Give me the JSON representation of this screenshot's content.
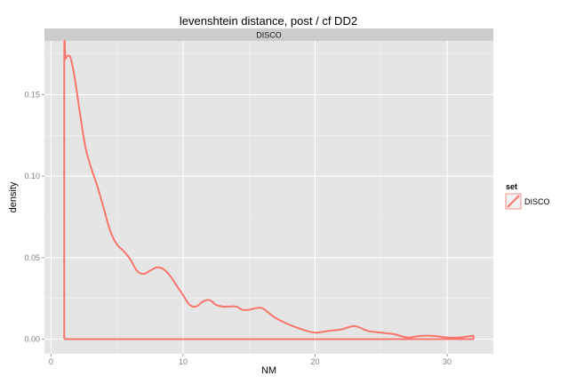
{
  "chart_data": {
    "type": "line",
    "title": "levenshtein distance, post / cf DD2",
    "facet_label": "DISCO",
    "xlabel": "NM",
    "ylabel": "density",
    "xlim": [
      -0.5,
      33.5
    ],
    "ylim": [
      -0.009,
      0.183
    ],
    "x_ticks": [
      0,
      10,
      20,
      30
    ],
    "x_tick_labels": [
      "0",
      "10",
      "20",
      "30"
    ],
    "y_ticks": [
      0.0,
      0.05,
      0.1,
      0.15
    ],
    "y_tick_labels": [
      "0.00",
      "0.05",
      "0.10",
      "0.15"
    ],
    "grid": true,
    "legend": {
      "title": "set",
      "position": "right",
      "entries": [
        "DISCO"
      ]
    },
    "series": [
      {
        "name": "DISCO",
        "color": "#f8766d",
        "x": [
          1,
          1,
          1.1,
          1.3,
          1.5,
          1.8,
          2.2,
          2.6,
          3,
          3.5,
          4,
          4.5,
          5,
          5.5,
          6,
          6.5,
          7,
          7.5,
          8,
          8.5,
          9,
          9.5,
          10,
          10.5,
          11,
          11.5,
          12,
          12.5,
          13,
          13.5,
          14,
          14.5,
          15,
          15.5,
          16,
          16.5,
          17,
          18,
          19,
          20,
          21,
          22,
          23,
          24,
          25,
          26,
          27,
          28,
          29,
          30,
          31,
          32,
          32,
          1
        ],
        "y": [
          0,
          0.17,
          0.172,
          0.174,
          0.172,
          0.16,
          0.138,
          0.118,
          0.106,
          0.094,
          0.08,
          0.066,
          0.058,
          0.054,
          0.049,
          0.042,
          0.04,
          0.042,
          0.044,
          0.043,
          0.039,
          0.033,
          0.027,
          0.021,
          0.02,
          0.023,
          0.024,
          0.021,
          0.02,
          0.02,
          0.02,
          0.018,
          0.018,
          0.019,
          0.019,
          0.016,
          0.013,
          0.009,
          0.006,
          0.004,
          0.005,
          0.006,
          0.008,
          0.005,
          0.004,
          0.003,
          0.001,
          0.002,
          0.002,
          0.001,
          0.001,
          0.002,
          0,
          0
        ]
      }
    ]
  },
  "colors": {
    "panel_bg": "#e5e5e5",
    "grid_major": "#ffffff",
    "grid_minor": "#f2f2f2",
    "strip_bg": "#cccccc",
    "line": "#f8766d"
  }
}
